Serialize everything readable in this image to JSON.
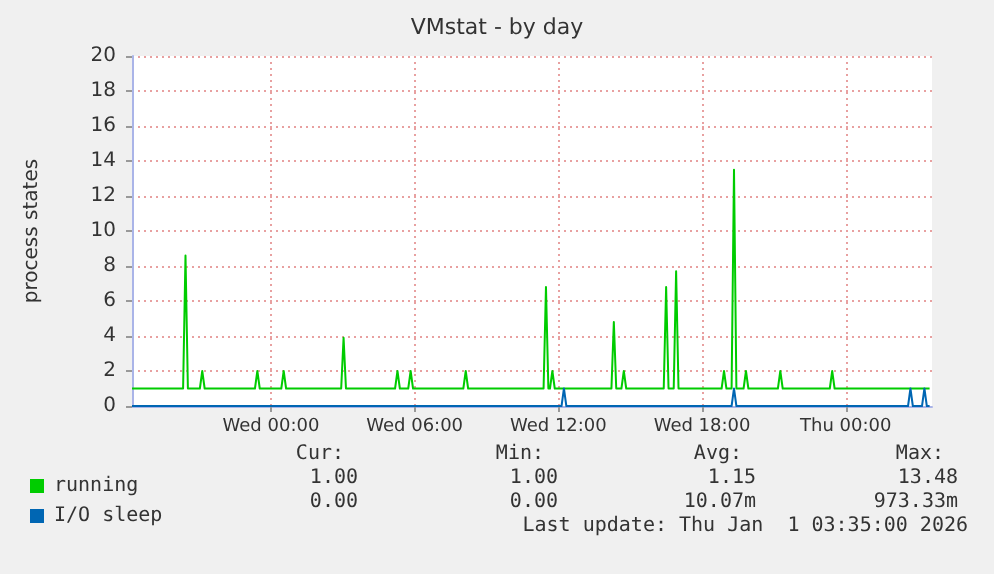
{
  "chart_data": {
    "type": "line",
    "title": "VMstat - by day",
    "ylabel": "process states",
    "xlim": [
      "2025-12-30T18:12",
      "2026-01-01T03:36"
    ],
    "xticks": [
      {
        "value": "2025-12-31T00:00",
        "label": "Wed 00:00"
      },
      {
        "value": "2025-12-31T06:00",
        "label": "Wed 06:00"
      },
      {
        "value": "2025-12-31T12:00",
        "label": "Wed 12:00"
      },
      {
        "value": "2025-12-31T18:00",
        "label": "Wed 18:00"
      },
      {
        "value": "2026-01-01T00:00",
        "label": "Thu 00:00"
      }
    ],
    "ylim": [
      0,
      20
    ],
    "yticks": [
      0,
      2,
      4,
      6,
      8,
      10,
      12,
      14,
      16,
      18,
      20
    ],
    "grid": true,
    "legend": "bottom left",
    "marker": "none",
    "line_style": "solid",
    "series": [
      {
        "name": "running",
        "color": "#00cc00",
        "x": [
          "2025-12-30T18:12",
          "2025-12-30T20:20",
          "2025-12-30T20:26",
          "2025-12-30T20:32",
          "2025-12-30T21:02",
          "2025-12-30T21:08",
          "2025-12-30T21:14",
          "2025-12-30T23:20",
          "2025-12-30T23:26",
          "2025-12-30T23:32",
          "2025-12-31T00:26",
          "2025-12-31T00:32",
          "2025-12-31T00:38",
          "2025-12-31T02:56",
          "2025-12-31T03:02",
          "2025-12-31T03:08",
          "2025-12-31T05:11",
          "2025-12-31T05:17",
          "2025-12-31T05:23",
          "2025-12-31T05:44",
          "2025-12-31T05:50",
          "2025-12-31T05:56",
          "2025-12-31T08:02",
          "2025-12-31T08:08",
          "2025-12-31T08:14",
          "2025-12-31T11:23",
          "2025-12-31T11:29",
          "2025-12-31T11:35",
          "2025-12-31T11:39",
          "2025-12-31T11:45",
          "2025-12-31T11:51",
          "2025-12-31T14:13",
          "2025-12-31T14:19",
          "2025-12-31T14:25",
          "2025-12-31T14:38",
          "2025-12-31T14:44",
          "2025-12-31T14:50",
          "2025-12-31T16:24",
          "2025-12-31T16:30",
          "2025-12-31T16:36",
          "2025-12-31T16:49",
          "2025-12-31T16:55",
          "2025-12-31T17:01",
          "2025-12-31T18:49",
          "2025-12-31T18:55",
          "2025-12-31T19:01",
          "2025-12-31T19:14",
          "2025-12-31T19:20",
          "2025-12-31T19:26",
          "2025-12-31T19:44",
          "2025-12-31T19:50",
          "2025-12-31T19:56",
          "2025-12-31T21:10",
          "2025-12-31T21:16",
          "2025-12-31T21:22",
          "2025-12-31T23:20",
          "2025-12-31T23:26",
          "2025-12-31T23:32",
          "2026-01-01T03:30"
        ],
        "values": [
          1,
          1,
          8.6,
          1,
          1,
          2,
          1,
          1,
          2,
          1,
          1,
          2,
          1,
          1,
          3.9,
          1,
          1,
          2,
          1,
          1,
          2,
          1,
          1,
          2,
          1,
          1,
          6.8,
          1,
          1,
          2,
          1,
          1,
          4.8,
          1,
          1,
          2,
          1,
          1,
          6.8,
          1,
          1,
          7.7,
          1,
          1,
          2,
          1,
          1,
          13.5,
          1,
          1,
          2,
          1,
          1,
          2,
          1,
          1,
          2,
          1,
          1
        ]
      },
      {
        "name": "I/O sleep",
        "color": "#0066b3",
        "x": [
          "2025-12-30T18:12",
          "2025-12-31T12:08",
          "2025-12-31T12:14",
          "2025-12-31T12:20",
          "2025-12-31T19:14",
          "2025-12-31T19:20",
          "2025-12-31T19:26",
          "2026-01-01T02:36",
          "2026-01-01T02:42",
          "2026-01-01T02:48",
          "2026-01-01T03:11",
          "2026-01-01T03:17",
          "2026-01-01T03:23",
          "2026-01-01T03:30"
        ],
        "values": [
          0,
          0,
          1,
          0,
          0,
          1,
          0,
          0,
          1,
          0,
          0,
          1,
          0,
          0
        ]
      }
    ],
    "annotations": [
      "Cur:",
      "Min:",
      "Avg:",
      "Max:",
      "1.00",
      "1.00",
      "1.15",
      "13.48",
      "0.00",
      "0.00",
      "10.07m",
      "973.33m",
      "Last update: Thu Jan  1 03:35:00 2026"
    ]
  }
}
